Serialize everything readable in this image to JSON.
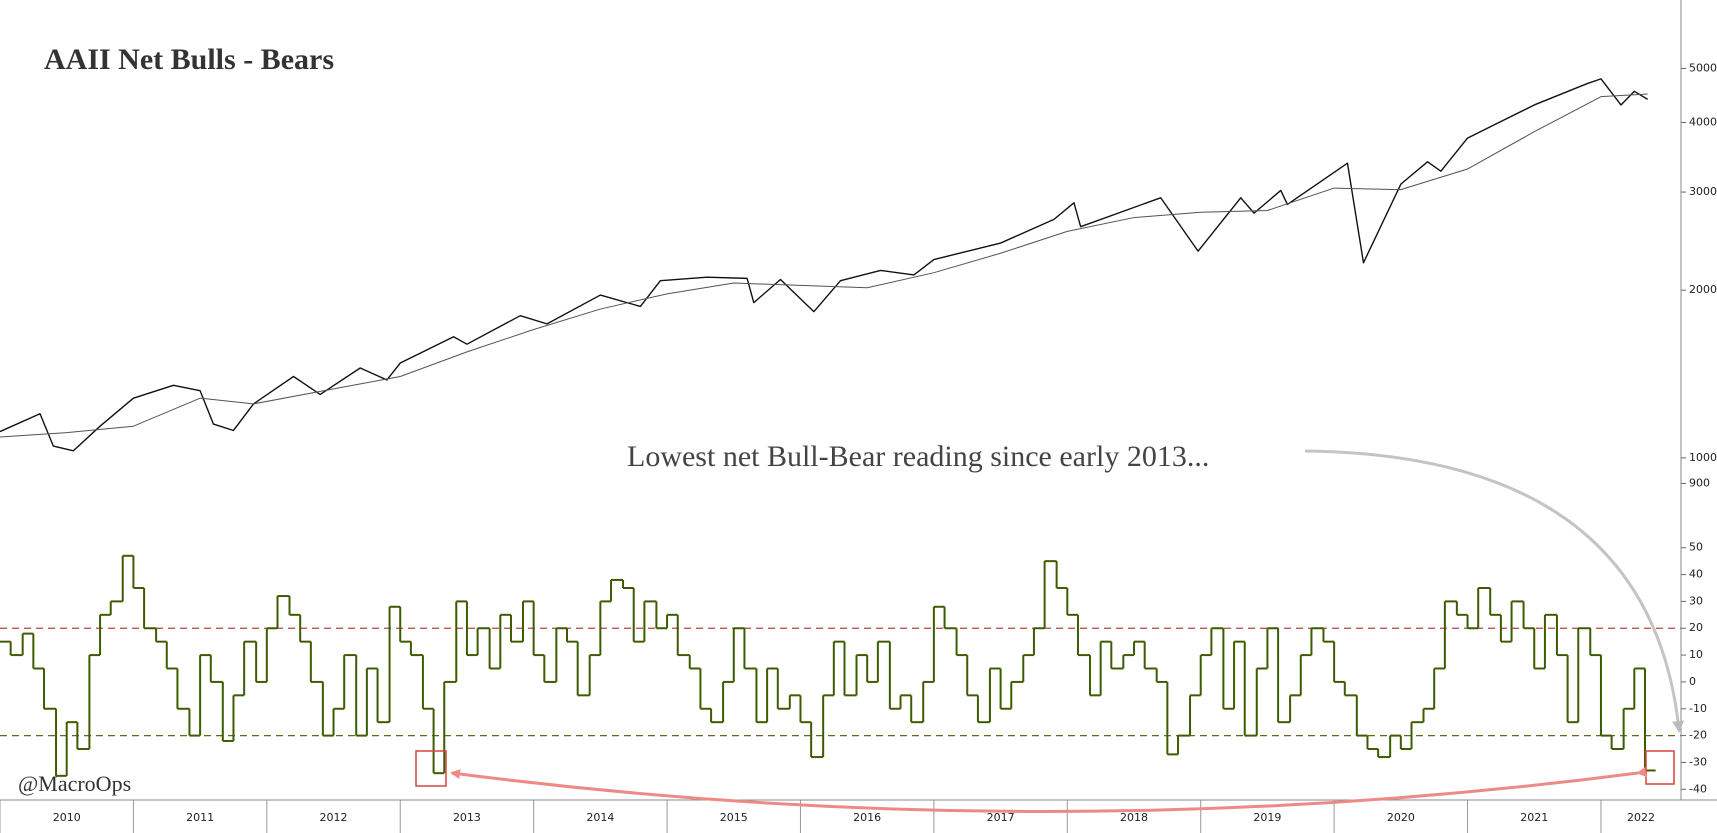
{
  "chart_data": [
    {
      "type": "line",
      "title": "AAII Net Bulls - Bears",
      "annotation": "Lowest net Bull-Bear reading since early 2013...",
      "log_scale": true,
      "xlim": [
        2010.0,
        2022.6
      ],
      "ylim": [
        865,
        5330
      ],
      "yticks": [
        900,
        1000,
        2000,
        3000,
        4000,
        5000
      ],
      "series": [
        {
          "color": "#111111",
          "x": [
            2010.0,
            2010.3,
            2010.4,
            2010.55,
            2010.75,
            2011.0,
            2011.3,
            2011.5,
            2011.6,
            2011.75,
            2011.9,
            2012.2,
            2012.4,
            2012.7,
            2012.9,
            2013.0,
            2013.4,
            2013.5,
            2013.9,
            2014.1,
            2014.5,
            2014.8,
            2014.95,
            2015.3,
            2015.6,
            2015.65,
            2015.85,
            2016.1,
            2016.3,
            2016.6,
            2016.85,
            2017.0,
            2017.5,
            2017.9,
            2018.05,
            2018.1,
            2018.7,
            2018.98,
            2019.3,
            2019.4,
            2019.6,
            2019.65,
            2020.1,
            2020.22,
            2020.5,
            2020.7,
            2020.8,
            2021.0,
            2021.5,
            2021.9,
            2022.0,
            2022.15,
            2022.25,
            2022.35
          ],
          "values": [
            1115,
            1200,
            1050,
            1030,
            1140,
            1280,
            1350,
            1320,
            1150,
            1120,
            1250,
            1400,
            1300,
            1450,
            1380,
            1480,
            1650,
            1600,
            1800,
            1740,
            1960,
            1870,
            2080,
            2110,
            2100,
            1900,
            2090,
            1830,
            2080,
            2170,
            2130,
            2270,
            2430,
            2680,
            2870,
            2600,
            2930,
            2350,
            2930,
            2750,
            3020,
            2850,
            3380,
            2240,
            3100,
            3400,
            3270,
            3750,
            4300,
            4700,
            4790,
            4300,
            4550,
            4400
          ]
        },
        {
          "color": "#4a5a46",
          "x": [
            2010.0,
            2010.5,
            2011.0,
            2011.5,
            2011.9,
            2012.5,
            2013.0,
            2013.5,
            2014.0,
            2014.5,
            2015.0,
            2015.5,
            2016.0,
            2016.5,
            2017.0,
            2017.5,
            2018.0,
            2018.5,
            2019.0,
            2019.5,
            2020.0,
            2020.5,
            2021.0,
            2021.5,
            2022.0,
            2022.35
          ],
          "values": [
            1090,
            1110,
            1140,
            1280,
            1250,
            1330,
            1400,
            1550,
            1700,
            1850,
            1970,
            2060,
            2040,
            2020,
            2150,
            2330,
            2550,
            2700,
            2760,
            2780,
            3050,
            3030,
            3300,
            3850,
            4450,
            4500
          ]
        }
      ]
    },
    {
      "type": "step",
      "xlim": [
        2010.0,
        2022.6
      ],
      "ylim": [
        -44,
        54
      ],
      "yticks": [
        -40,
        -30,
        -20,
        -10,
        0,
        10,
        20,
        30,
        40,
        50
      ],
      "xticks": [
        {
          "value": 2010,
          "label": "2010"
        },
        {
          "value": 2011,
          "label": "2011"
        },
        {
          "value": 2012,
          "label": "2012"
        },
        {
          "value": 2013,
          "label": "2013"
        },
        {
          "value": 2014,
          "label": "2014"
        },
        {
          "value": 2015,
          "label": "2015"
        },
        {
          "value": 2016,
          "label": "2016"
        },
        {
          "value": 2017,
          "label": "2017"
        },
        {
          "value": 2018,
          "label": "2018"
        },
        {
          "value": 2019,
          "label": "2019"
        },
        {
          "value": 2020,
          "label": "2020"
        },
        {
          "value": 2021,
          "label": "2021"
        },
        {
          "value": 2022,
          "label": "2022"
        }
      ],
      "reference_lines": [
        {
          "value": 20,
          "color": "#b5463f"
        },
        {
          "value": -20,
          "color": "#5b6e1e"
        }
      ],
      "series": [
        {
          "color": "#3d5c00",
          "x": [
            2010.0,
            2010.08,
            2010.17,
            2010.25,
            2010.33,
            2010.42,
            2010.5,
            2010.58,
            2010.67,
            2010.75,
            2010.83,
            2010.92,
            2011.0,
            2011.08,
            2011.17,
            2011.25,
            2011.33,
            2011.42,
            2011.5,
            2011.58,
            2011.67,
            2011.75,
            2011.83,
            2011.92,
            2012.0,
            2012.08,
            2012.17,
            2012.25,
            2012.33,
            2012.42,
            2012.5,
            2012.58,
            2012.67,
            2012.75,
            2012.83,
            2012.92,
            2013.0,
            2013.08,
            2013.17,
            2013.25,
            2013.33,
            2013.42,
            2013.5,
            2013.58,
            2013.67,
            2013.75,
            2013.83,
            2013.92,
            2014.0,
            2014.08,
            2014.17,
            2014.25,
            2014.33,
            2014.42,
            2014.5,
            2014.58,
            2014.67,
            2014.75,
            2014.83,
            2014.92,
            2015.0,
            2015.08,
            2015.17,
            2015.25,
            2015.33,
            2015.42,
            2015.5,
            2015.58,
            2015.67,
            2015.75,
            2015.83,
            2015.92,
            2016.0,
            2016.08,
            2016.17,
            2016.25,
            2016.33,
            2016.42,
            2016.5,
            2016.58,
            2016.67,
            2016.75,
            2016.83,
            2016.92,
            2017.0,
            2017.08,
            2017.17,
            2017.25,
            2017.33,
            2017.42,
            2017.5,
            2017.58,
            2017.67,
            2017.75,
            2017.83,
            2017.92,
            2018.0,
            2018.08,
            2018.17,
            2018.25,
            2018.33,
            2018.42,
            2018.5,
            2018.58,
            2018.67,
            2018.75,
            2018.83,
            2018.92,
            2019.0,
            2019.08,
            2019.17,
            2019.25,
            2019.33,
            2019.42,
            2019.5,
            2019.58,
            2019.67,
            2019.75,
            2019.83,
            2019.92,
            2020.0,
            2020.08,
            2020.17,
            2020.25,
            2020.33,
            2020.42,
            2020.5,
            2020.58,
            2020.67,
            2020.75,
            2020.83,
            2020.92,
            2021.0,
            2021.08,
            2021.17,
            2021.25,
            2021.33,
            2021.42,
            2021.5,
            2021.58,
            2021.67,
            2021.75,
            2021.83,
            2021.92,
            2022.0,
            2022.08,
            2022.17,
            2022.25,
            2022.33
          ],
          "values": [
            15,
            10,
            18,
            5,
            -10,
            -35,
            -15,
            -25,
            10,
            25,
            30,
            47,
            35,
            20,
            15,
            5,
            -10,
            -20,
            10,
            0,
            -22,
            -5,
            15,
            0,
            20,
            32,
            25,
            15,
            0,
            -20,
            -10,
            10,
            -20,
            5,
            -15,
            28,
            15,
            10,
            -10,
            -34,
            0,
            30,
            10,
            20,
            5,
            25,
            15,
            30,
            10,
            0,
            20,
            15,
            -5,
            10,
            30,
            38,
            35,
            15,
            30,
            20,
            25,
            10,
            5,
            -10,
            -15,
            0,
            20,
            5,
            -15,
            5,
            -10,
            -5,
            -15,
            -28,
            -5,
            15,
            -5,
            10,
            0,
            15,
            -10,
            -5,
            -15,
            0,
            28,
            20,
            10,
            -5,
            -15,
            5,
            -10,
            0,
            10,
            20,
            45,
            35,
            25,
            10,
            -5,
            15,
            5,
            10,
            15,
            5,
            0,
            -27,
            -20,
            -5,
            10,
            20,
            -10,
            15,
            -20,
            5,
            20,
            -15,
            -5,
            10,
            20,
            15,
            0,
            -5,
            -20,
            -25,
            -28,
            -20,
            -25,
            -15,
            -10,
            5,
            30,
            25,
            20,
            35,
            25,
            15,
            30,
            20,
            5,
            25,
            10,
            -15,
            20,
            10,
            -20,
            -25,
            -10,
            5,
            -33
          ]
        }
      ]
    }
  ],
  "watermark": "@MacroOps"
}
